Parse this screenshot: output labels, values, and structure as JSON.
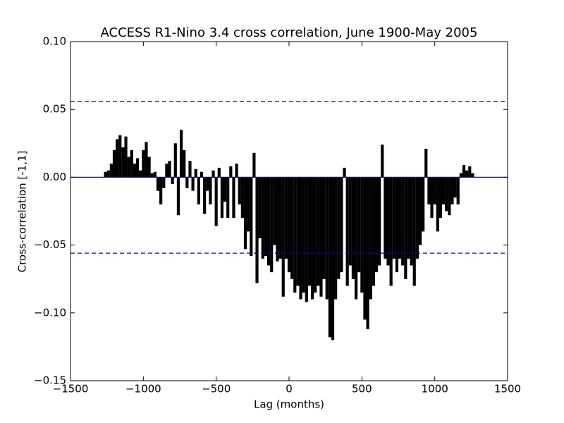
{
  "chart_data": {
    "type": "stem",
    "title": "ACCESS R1-Nino 3.4 cross correlation, June 1900-May 2005",
    "x_label": "Lag (months)",
    "y_label": "Cross-correlation [-1,1]",
    "x": [
      -1260,
      -1240,
      -1220,
      -1200,
      -1180,
      -1160,
      -1140,
      -1120,
      -1100,
      -1080,
      -1060,
      -1040,
      -1020,
      -1000,
      -980,
      -960,
      -940,
      -920,
      -900,
      -880,
      -860,
      -840,
      -820,
      -800,
      -780,
      -760,
      -740,
      -720,
      -700,
      -680,
      -660,
      -640,
      -620,
      -600,
      -580,
      -560,
      -540,
      -520,
      -500,
      -480,
      -460,
      -440,
      -420,
      -400,
      -380,
      -360,
      -340,
      -320,
      -300,
      -280,
      -260,
      -240,
      -220,
      -200,
      -180,
      -160,
      -140,
      -120,
      -100,
      -80,
      -60,
      -40,
      -20,
      0,
      20,
      40,
      60,
      80,
      100,
      120,
      140,
      160,
      180,
      200,
      220,
      240,
      260,
      280,
      300,
      320,
      340,
      360,
      380,
      400,
      420,
      440,
      460,
      480,
      500,
      520,
      540,
      560,
      580,
      600,
      620,
      640,
      660,
      680,
      700,
      720,
      740,
      760,
      780,
      800,
      820,
      840,
      860,
      880,
      900,
      920,
      940,
      960,
      980,
      1000,
      1020,
      1040,
      1060,
      1080,
      1100,
      1120,
      1140,
      1160,
      1180,
      1200,
      1220,
      1240,
      1260
    ],
    "values": [
      0.004,
      0.005,
      0.01,
      0.02,
      0.028,
      0.031,
      0.022,
      0.03,
      0.015,
      0.02,
      0.01,
      0.014,
      0.005,
      0.02,
      0.026,
      0.015,
      0.003,
      0.004,
      -0.01,
      -0.02,
      -0.008,
      0.01,
      0.012,
      -0.005,
      0.025,
      -0.028,
      0.035,
      0.02,
      -0.008,
      0.012,
      -0.01,
      0.006,
      -0.02,
      0.004,
      -0.027,
      -0.01,
      -0.02,
      0.005,
      -0.036,
      0.007,
      -0.03,
      -0.018,
      -0.03,
      0.008,
      -0.03,
      0.01,
      -0.02,
      -0.03,
      -0.053,
      -0.04,
      -0.058,
      0.018,
      -0.078,
      -0.045,
      -0.06,
      -0.058,
      -0.065,
      -0.07,
      -0.05,
      -0.062,
      -0.06,
      -0.088,
      -0.06,
      -0.07,
      -0.075,
      -0.085,
      -0.08,
      -0.09,
      -0.085,
      -0.092,
      -0.08,
      -0.09,
      -0.085,
      -0.08,
      -0.088,
      -0.075,
      -0.09,
      -0.118,
      -0.12,
      -0.09,
      -0.075,
      -0.07,
      0.007,
      -0.08,
      -0.065,
      -0.075,
      -0.09,
      -0.07,
      -0.085,
      -0.105,
      -0.112,
      -0.09,
      -0.08,
      -0.07,
      -0.065,
      0.024,
      -0.06,
      -0.065,
      -0.08,
      -0.06,
      -0.07,
      -0.06,
      -0.065,
      -0.075,
      -0.06,
      -0.065,
      -0.08,
      -0.06,
      -0.05,
      -0.04,
      0.021,
      -0.02,
      -0.03,
      -0.02,
      -0.04,
      -0.03,
      -0.02,
      -0.025,
      -0.028,
      -0.02,
      -0.015,
      -0.02,
      0.003,
      0.009,
      0.005,
      0.008,
      0.003
    ],
    "color": "#000000",
    "reference_lines": [
      {
        "value": 0.056,
        "color": "#0000ff",
        "dashed": true
      },
      {
        "value": 0,
        "color": "#0000ff",
        "dashed": false
      },
      {
        "value": -0.056,
        "color": "#0000ff",
        "dashed": true
      }
    ],
    "xlim": [
      -1500,
      1500
    ],
    "ylim": [
      -0.15,
      0.1
    ],
    "xticks": [
      {
        "value": -1500,
        "label": "−1500"
      },
      {
        "value": -1000,
        "label": "−1000"
      },
      {
        "value": -500,
        "label": "−500"
      },
      0,
      500,
      1000,
      1500
    ],
    "yticks": [
      {
        "value": -0.15,
        "label": "−0.15"
      },
      {
        "value": -0.1,
        "label": "−0.10"
      },
      {
        "value": -0.05,
        "label": "−0.05"
      },
      {
        "value": 0,
        "label": "0.00"
      },
      {
        "value": 0.05,
        "label": "0.05"
      },
      {
        "value": 0.1,
        "label": "0.10"
      }
    ],
    "grid": false
  }
}
